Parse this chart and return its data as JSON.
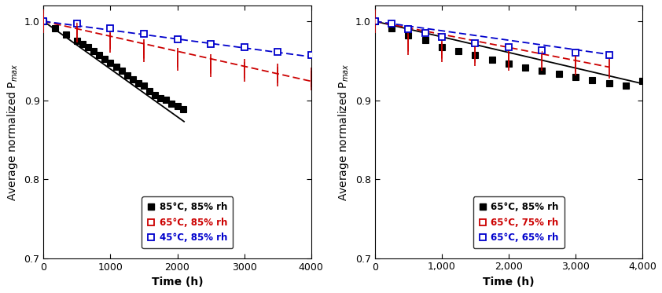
{
  "left": {
    "xlabel": "Time (h)",
    "ylabel": "Average normalized P$_{max}$",
    "xlim": [
      0,
      4000
    ],
    "ylim": [
      0.7,
      1.02
    ],
    "yticks": [
      0.7,
      0.8,
      0.9,
      1.0
    ],
    "xticks": [
      0,
      1000,
      2000,
      3000,
      4000
    ],
    "xtick_labels": [
      "0",
      "1000",
      "2000",
      "3000",
      "4000"
    ],
    "series": [
      {
        "label": "85°C, 85% rh",
        "color": "#000000",
        "linestyle": "solid",
        "fillstyle": "full",
        "x": [
          0,
          167,
          333,
          500,
          583,
          667,
          750,
          833,
          917,
          1000,
          1083,
          1167,
          1250,
          1333,
          1417,
          1500,
          1583,
          1667,
          1750,
          1833,
          1917,
          2000,
          2083
        ],
        "y": [
          1.0,
          0.991,
          0.983,
          0.975,
          0.971,
          0.967,
          0.962,
          0.957,
          0.952,
          0.947,
          0.942,
          0.937,
          0.931,
          0.926,
          0.921,
          0.918,
          0.912,
          0.907,
          0.903,
          0.901,
          0.896,
          0.893,
          0.889
        ],
        "fit_x": [
          0,
          2100
        ],
        "fit_y": [
          1.0,
          0.873
        ]
      },
      {
        "label": "65°C, 85% rh",
        "color": "#cc0000",
        "linestyle": "dashed",
        "fillstyle": "hatched",
        "x": [
          0,
          500,
          1000,
          1500,
          2000,
          2500,
          3000,
          3500,
          4000
        ],
        "y": [
          1.0,
          0.988,
          0.975,
          0.963,
          0.952,
          0.944,
          0.938,
          0.932,
          0.927
        ],
        "fit_x": [
          0,
          4000
        ],
        "fit_y": [
          1.0,
          0.924
        ]
      },
      {
        "label": "45°C, 85% rh",
        "color": "#0000cc",
        "linestyle": "dashed",
        "fillstyle": "open",
        "x": [
          0,
          500,
          1000,
          1500,
          2000,
          2500,
          3000,
          3500,
          4000
        ],
        "y": [
          1.0,
          0.997,
          0.991,
          0.984,
          0.977,
          0.971,
          0.967,
          0.961,
          0.957
        ],
        "fit_x": [
          0,
          4000
        ],
        "fit_y": [
          1.0,
          0.955
        ]
      }
    ]
  },
  "right": {
    "xlabel": "Time (h)",
    "ylabel": "Average normalized P$_{max}$",
    "xlim": [
      0,
      4000
    ],
    "ylim": [
      0.7,
      1.02
    ],
    "yticks": [
      0.7,
      0.8,
      0.9,
      1.0
    ],
    "xticks": [
      0,
      1000,
      2000,
      3000,
      4000
    ],
    "xtick_labels": [
      "0",
      "1,000",
      "2,000",
      "3,000",
      "4,000"
    ],
    "series": [
      {
        "label": "65°C, 85% rh",
        "color": "#000000",
        "linestyle": "solid",
        "fillstyle": "full",
        "x": [
          0,
          250,
          500,
          750,
          1000,
          1250,
          1500,
          1750,
          2000,
          2250,
          2500,
          2750,
          3000,
          3250,
          3500,
          3750,
          4000
        ],
        "y": [
          1.0,
          0.991,
          0.982,
          0.976,
          0.967,
          0.962,
          0.957,
          0.951,
          0.946,
          0.941,
          0.937,
          0.933,
          0.929,
          0.925,
          0.921,
          0.918,
          0.924
        ],
        "fit_x": [
          0,
          4000
        ],
        "fit_y": [
          1.0,
          0.921
        ]
      },
      {
        "label": "65°C, 75% rh",
        "color": "#cc0000",
        "linestyle": "dashed",
        "fillstyle": "hatched",
        "x": [
          0,
          500,
          1000,
          1500,
          2000,
          2500,
          3000,
          3500
        ],
        "y": [
          1.0,
          0.972,
          0.963,
          0.958,
          0.952,
          0.952,
          0.946,
          0.942
        ],
        "fit_x": [
          0,
          3500
        ],
        "fit_y": [
          1.0,
          0.942
        ]
      },
      {
        "label": "65°C, 65% rh",
        "color": "#0000cc",
        "linestyle": "dashed",
        "fillstyle": "open",
        "x": [
          0,
          250,
          500,
          750,
          1000,
          1500,
          2000,
          2500,
          3000,
          3500
        ],
        "y": [
          1.0,
          0.997,
          0.99,
          0.985,
          0.98,
          0.972,
          0.967,
          0.963,
          0.96,
          0.957
        ],
        "fit_x": [
          0,
          3500
        ],
        "fit_y": [
          1.0,
          0.958
        ]
      }
    ]
  },
  "marker_size": 6,
  "linewidth": 1.3,
  "legend_fontsize": 8.5,
  "axis_label_fontsize": 10,
  "tick_fontsize": 9,
  "fig_width": 8.42,
  "fig_height": 3.73,
  "dpi": 100
}
